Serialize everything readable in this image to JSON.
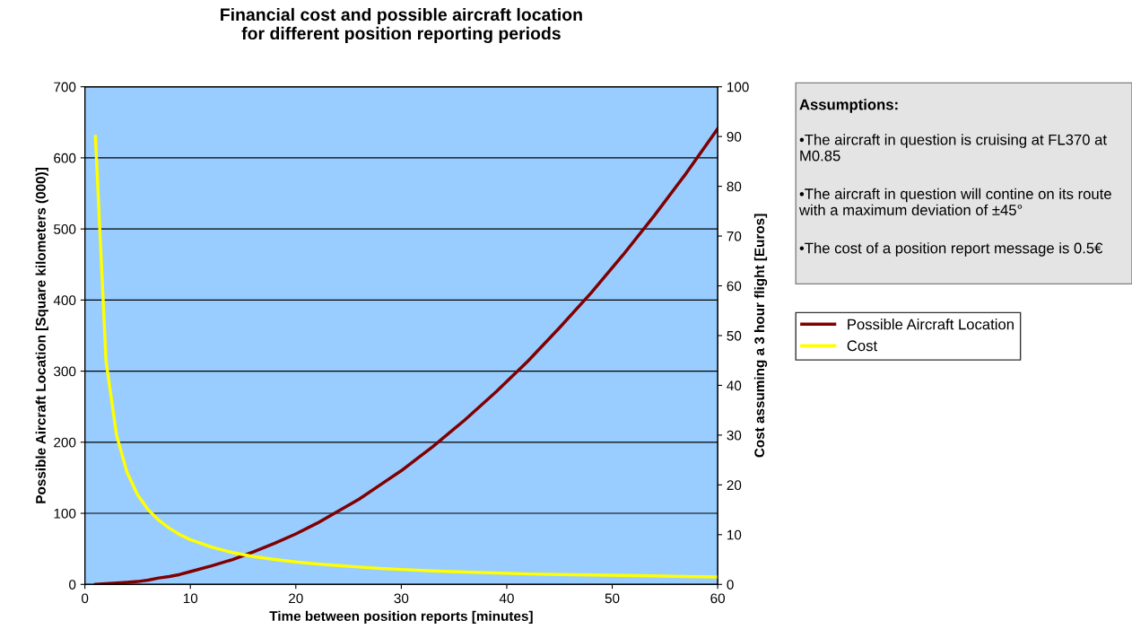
{
  "chart_data": {
    "type": "line",
    "title": "Financial cost and possible aircraft location\nfor different position reporting periods",
    "xlabel": "Time between position reports [minutes]",
    "ylabel": "Possible Aircraft Location [Square kilometers (000)]",
    "y2label": "Cost assuming a 3 hour flight [Euros]",
    "x": [
      1,
      2,
      3,
      4,
      5,
      6,
      7,
      8,
      9,
      10,
      12,
      14,
      16,
      18,
      20,
      22,
      24,
      26,
      28,
      30,
      33,
      36,
      39,
      42,
      45,
      48,
      51,
      54,
      57,
      60
    ],
    "series": [
      {
        "name": "Possible Aircraft Location",
        "color": "#800000",
        "axis": "y",
        "values": [
          0,
          1,
          2,
          3,
          4,
          6,
          9,
          11,
          14,
          18,
          26,
          35,
          46,
          58,
          71,
          86,
          103,
          120,
          140,
          160,
          194,
          231,
          271,
          314,
          361,
          410,
          463,
          519,
          578,
          641
        ]
      },
      {
        "name": "Cost",
        "color": "#ffff00",
        "axis": "y2",
        "values": [
          90,
          45,
          30,
          22.5,
          18,
          15,
          12.9,
          11.3,
          10,
          9,
          7.5,
          6.4,
          5.6,
          5,
          4.5,
          4.1,
          3.8,
          3.5,
          3.2,
          3,
          2.7,
          2.5,
          2.3,
          2.1,
          2,
          1.9,
          1.8,
          1.7,
          1.6,
          1.5
        ]
      }
    ],
    "xlim": [
      0,
      60
    ],
    "xticks": [
      0,
      10,
      20,
      30,
      40,
      50,
      60
    ],
    "ylim": [
      0,
      700
    ],
    "yticks": [
      0,
      100,
      200,
      300,
      400,
      500,
      600,
      700
    ],
    "y2lim": [
      0,
      100
    ],
    "y2ticks": [
      0,
      10,
      20,
      30,
      40,
      50,
      60,
      70,
      80,
      90,
      100
    ],
    "grid": "y",
    "legend": "right",
    "marker": "none",
    "line_style": "solid",
    "annotations": [
      "Assumptions:",
      "•The aircraft in question is cruising at FL370 at M0.85",
      "•The aircraft in question will contine on its route with a maximum deviation of ±45°",
      "•The cost of a position report message is 0.5€"
    ]
  }
}
